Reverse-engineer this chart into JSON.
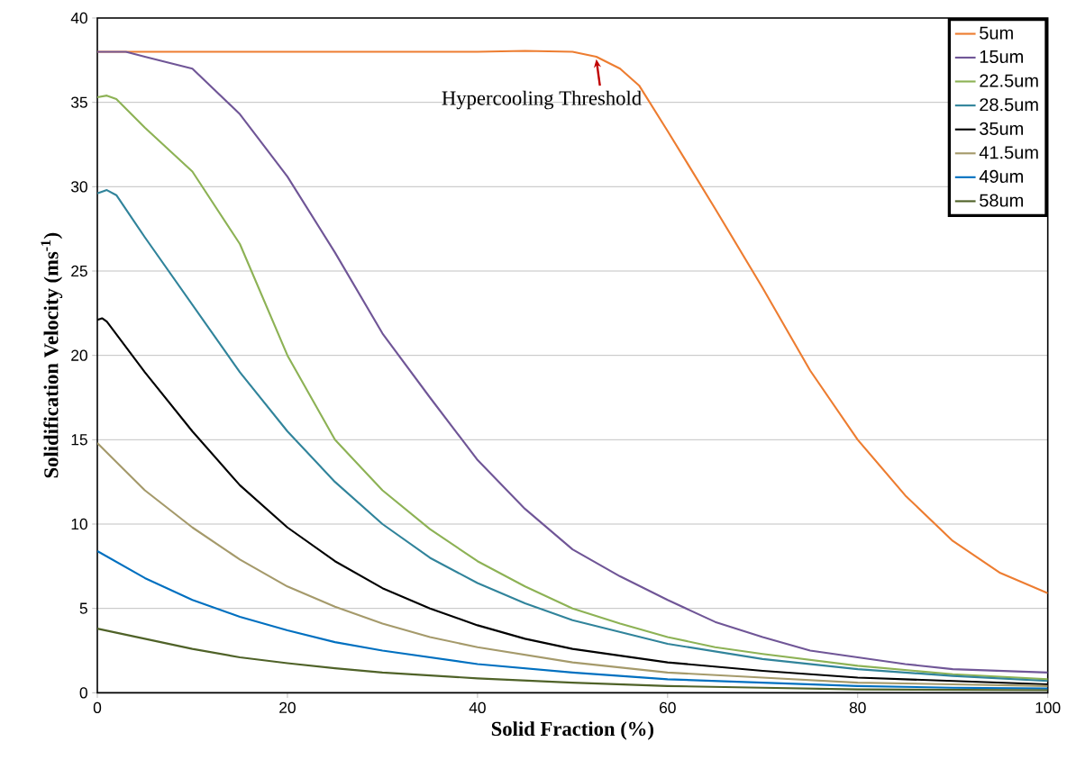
{
  "chart_data": {
    "type": "line",
    "xlabel": "Solid Fraction (%)",
    "ylabel": "Solidification Velocity (ms$^{-1}$)",
    "xlim": [
      0,
      100
    ],
    "ylim": [
      0,
      40
    ],
    "xticks": [
      0,
      20,
      40,
      60,
      80,
      100
    ],
    "yticks": [
      0,
      5,
      10,
      15,
      20,
      25,
      30,
      35,
      40
    ],
    "grid": "y",
    "legend": "top right",
    "line_style": "solid",
    "marker": "none",
    "annotations": [
      {
        "text": "Hypercooling Threshold",
        "x": 52.5,
        "y": 37.7
      }
    ],
    "series": [
      {
        "name": "5um",
        "color": "#ed7d31",
        "x": [
          0,
          10,
          20,
          30,
          40,
          45,
          50,
          52.5,
          55,
          57,
          60,
          65,
          70,
          75,
          80,
          85,
          90,
          95,
          100
        ],
        "values": [
          38,
          38,
          38,
          38,
          38,
          38.05,
          38,
          37.7,
          37,
          36,
          33.3,
          28.7,
          24,
          19.1,
          15,
          11.7,
          9,
          7.1,
          5.9
        ]
      },
      {
        "name": "15um",
        "color": "#705697",
        "x": [
          0,
          3,
          5,
          10,
          15,
          20,
          25,
          30,
          35,
          40,
          45,
          50,
          55,
          60,
          65,
          70,
          75,
          80,
          85,
          90,
          100
        ],
        "values": [
          38,
          38,
          37.7,
          37,
          34.3,
          30.6,
          26.1,
          21.3,
          17.5,
          13.8,
          10.9,
          8.5,
          6.9,
          5.5,
          4.2,
          3.3,
          2.5,
          2.1,
          1.7,
          1.4,
          1.2
        ]
      },
      {
        "name": "22.5um",
        "color": "#8db255",
        "x": [
          0,
          1,
          2,
          5,
          10,
          15,
          20,
          25,
          30,
          35,
          40,
          45,
          50,
          55,
          60,
          65,
          70,
          80,
          90,
          100
        ],
        "values": [
          35.3,
          35.4,
          35.2,
          33.5,
          30.9,
          26.6,
          20,
          15,
          12,
          9.7,
          7.8,
          6.3,
          5,
          4.1,
          3.3,
          2.7,
          2.3,
          1.6,
          1.1,
          0.8
        ]
      },
      {
        "name": "28.5um",
        "color": "#31849b",
        "x": [
          0,
          1,
          2,
          5,
          10,
          15,
          20,
          25,
          30,
          35,
          40,
          45,
          50,
          60,
          70,
          80,
          90,
          100
        ],
        "values": [
          29.6,
          29.8,
          29.5,
          27,
          23,
          19,
          15.5,
          12.5,
          10,
          8,
          6.5,
          5.3,
          4.3,
          2.9,
          2,
          1.4,
          1,
          0.7
        ]
      },
      {
        "name": "35um",
        "color": "#000000",
        "x": [
          0,
          0.5,
          1,
          5,
          10,
          15,
          20,
          25,
          30,
          35,
          40,
          45,
          50,
          60,
          70,
          80,
          90,
          100
        ],
        "values": [
          22.1,
          22.2,
          22,
          19,
          15.5,
          12.3,
          9.8,
          7.8,
          6.2,
          5,
          4,
          3.2,
          2.6,
          1.8,
          1.3,
          0.9,
          0.7,
          0.5
        ]
      },
      {
        "name": "41.5um",
        "color": "#a59a6b",
        "x": [
          0,
          5,
          10,
          15,
          20,
          25,
          30,
          35,
          40,
          50,
          60,
          70,
          80,
          90,
          100
        ],
        "values": [
          14.8,
          12,
          9.8,
          7.9,
          6.3,
          5.1,
          4.1,
          3.3,
          2.7,
          1.8,
          1.2,
          0.9,
          0.6,
          0.5,
          0.4
        ]
      },
      {
        "name": "49um",
        "color": "#0070c0",
        "x": [
          0,
          5,
          10,
          15,
          20,
          25,
          30,
          40,
          50,
          60,
          70,
          80,
          90,
          100
        ],
        "values": [
          8.4,
          6.8,
          5.5,
          4.5,
          3.7,
          3,
          2.5,
          1.7,
          1.2,
          0.8,
          0.6,
          0.4,
          0.3,
          0.25
        ]
      },
      {
        "name": "58um",
        "color": "#4f6228",
        "x": [
          0,
          5,
          10,
          15,
          20,
          25,
          30,
          40,
          50,
          60,
          70,
          80,
          100
        ],
        "values": [
          3.8,
          3.2,
          2.6,
          2.1,
          1.75,
          1.45,
          1.2,
          0.85,
          0.6,
          0.4,
          0.3,
          0.2,
          0.15
        ]
      }
    ]
  }
}
